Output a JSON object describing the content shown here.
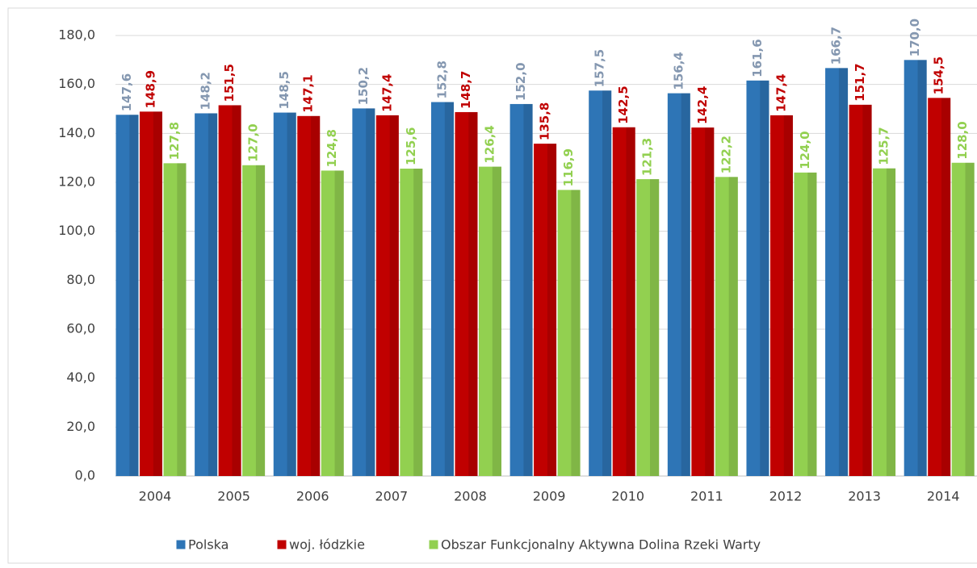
{
  "chart_data": {
    "type": "bar",
    "categories": [
      "2004",
      "2005",
      "2006",
      "2007",
      "2008",
      "2009",
      "2010",
      "2011",
      "2012",
      "2013",
      "2014"
    ],
    "ylim": [
      0,
      180
    ],
    "yticks": [
      {
        "value": 0,
        "label": "0,0"
      },
      {
        "value": 20,
        "label": "20,0"
      },
      {
        "value": 40,
        "label": "40,0"
      },
      {
        "value": 60,
        "label": "60,0"
      },
      {
        "value": 80,
        "label": "80,0"
      },
      {
        "value": 100,
        "label": "100,0"
      },
      {
        "value": 120,
        "label": "120,0"
      },
      {
        "value": 140,
        "label": "140,0"
      },
      {
        "value": 160,
        "label": "160,0"
      },
      {
        "value": 180,
        "label": "180,0"
      }
    ],
    "grid": true,
    "legend": "bottom",
    "series": [
      {
        "name": "Polska",
        "color": "#2e75b6",
        "label_color": "#8497b0",
        "values": [
          147.6,
          148.2,
          148.5,
          150.2,
          152.8,
          152.0,
          157.5,
          156.4,
          161.6,
          166.7,
          170.0
        ],
        "value_labels": [
          "147,6",
          "148,2",
          "148,5",
          "150,2",
          "152,8",
          "152,0",
          "157,5",
          "156,4",
          "161,6",
          "166,7",
          "170,0"
        ]
      },
      {
        "name": "woj. łódzkie",
        "color": "#c00000",
        "label_color": "#c00000",
        "values": [
          148.9,
          151.5,
          147.1,
          147.4,
          148.7,
          135.8,
          142.5,
          142.4,
          147.4,
          151.7,
          154.5
        ],
        "value_labels": [
          "148,9",
          "151,5",
          "147,1",
          "147,4",
          "148,7",
          "135,8",
          "142,5",
          "142,4",
          "147,4",
          "151,7",
          "154,5"
        ]
      },
      {
        "name": "Obszar Funkcjonalny Aktywna Dolina Rzeki Warty",
        "color": "#92d050",
        "label_color": "#92d050",
        "values": [
          127.8,
          127.0,
          124.8,
          125.6,
          126.4,
          116.9,
          121.3,
          122.2,
          124.0,
          125.7,
          128.0
        ],
        "value_labels": [
          "127,8",
          "127,0",
          "124,8",
          "125,6",
          "126,4",
          "116,9",
          "121,3",
          "122,2",
          "124,0",
          "125,7",
          "128,0"
        ]
      }
    ]
  }
}
